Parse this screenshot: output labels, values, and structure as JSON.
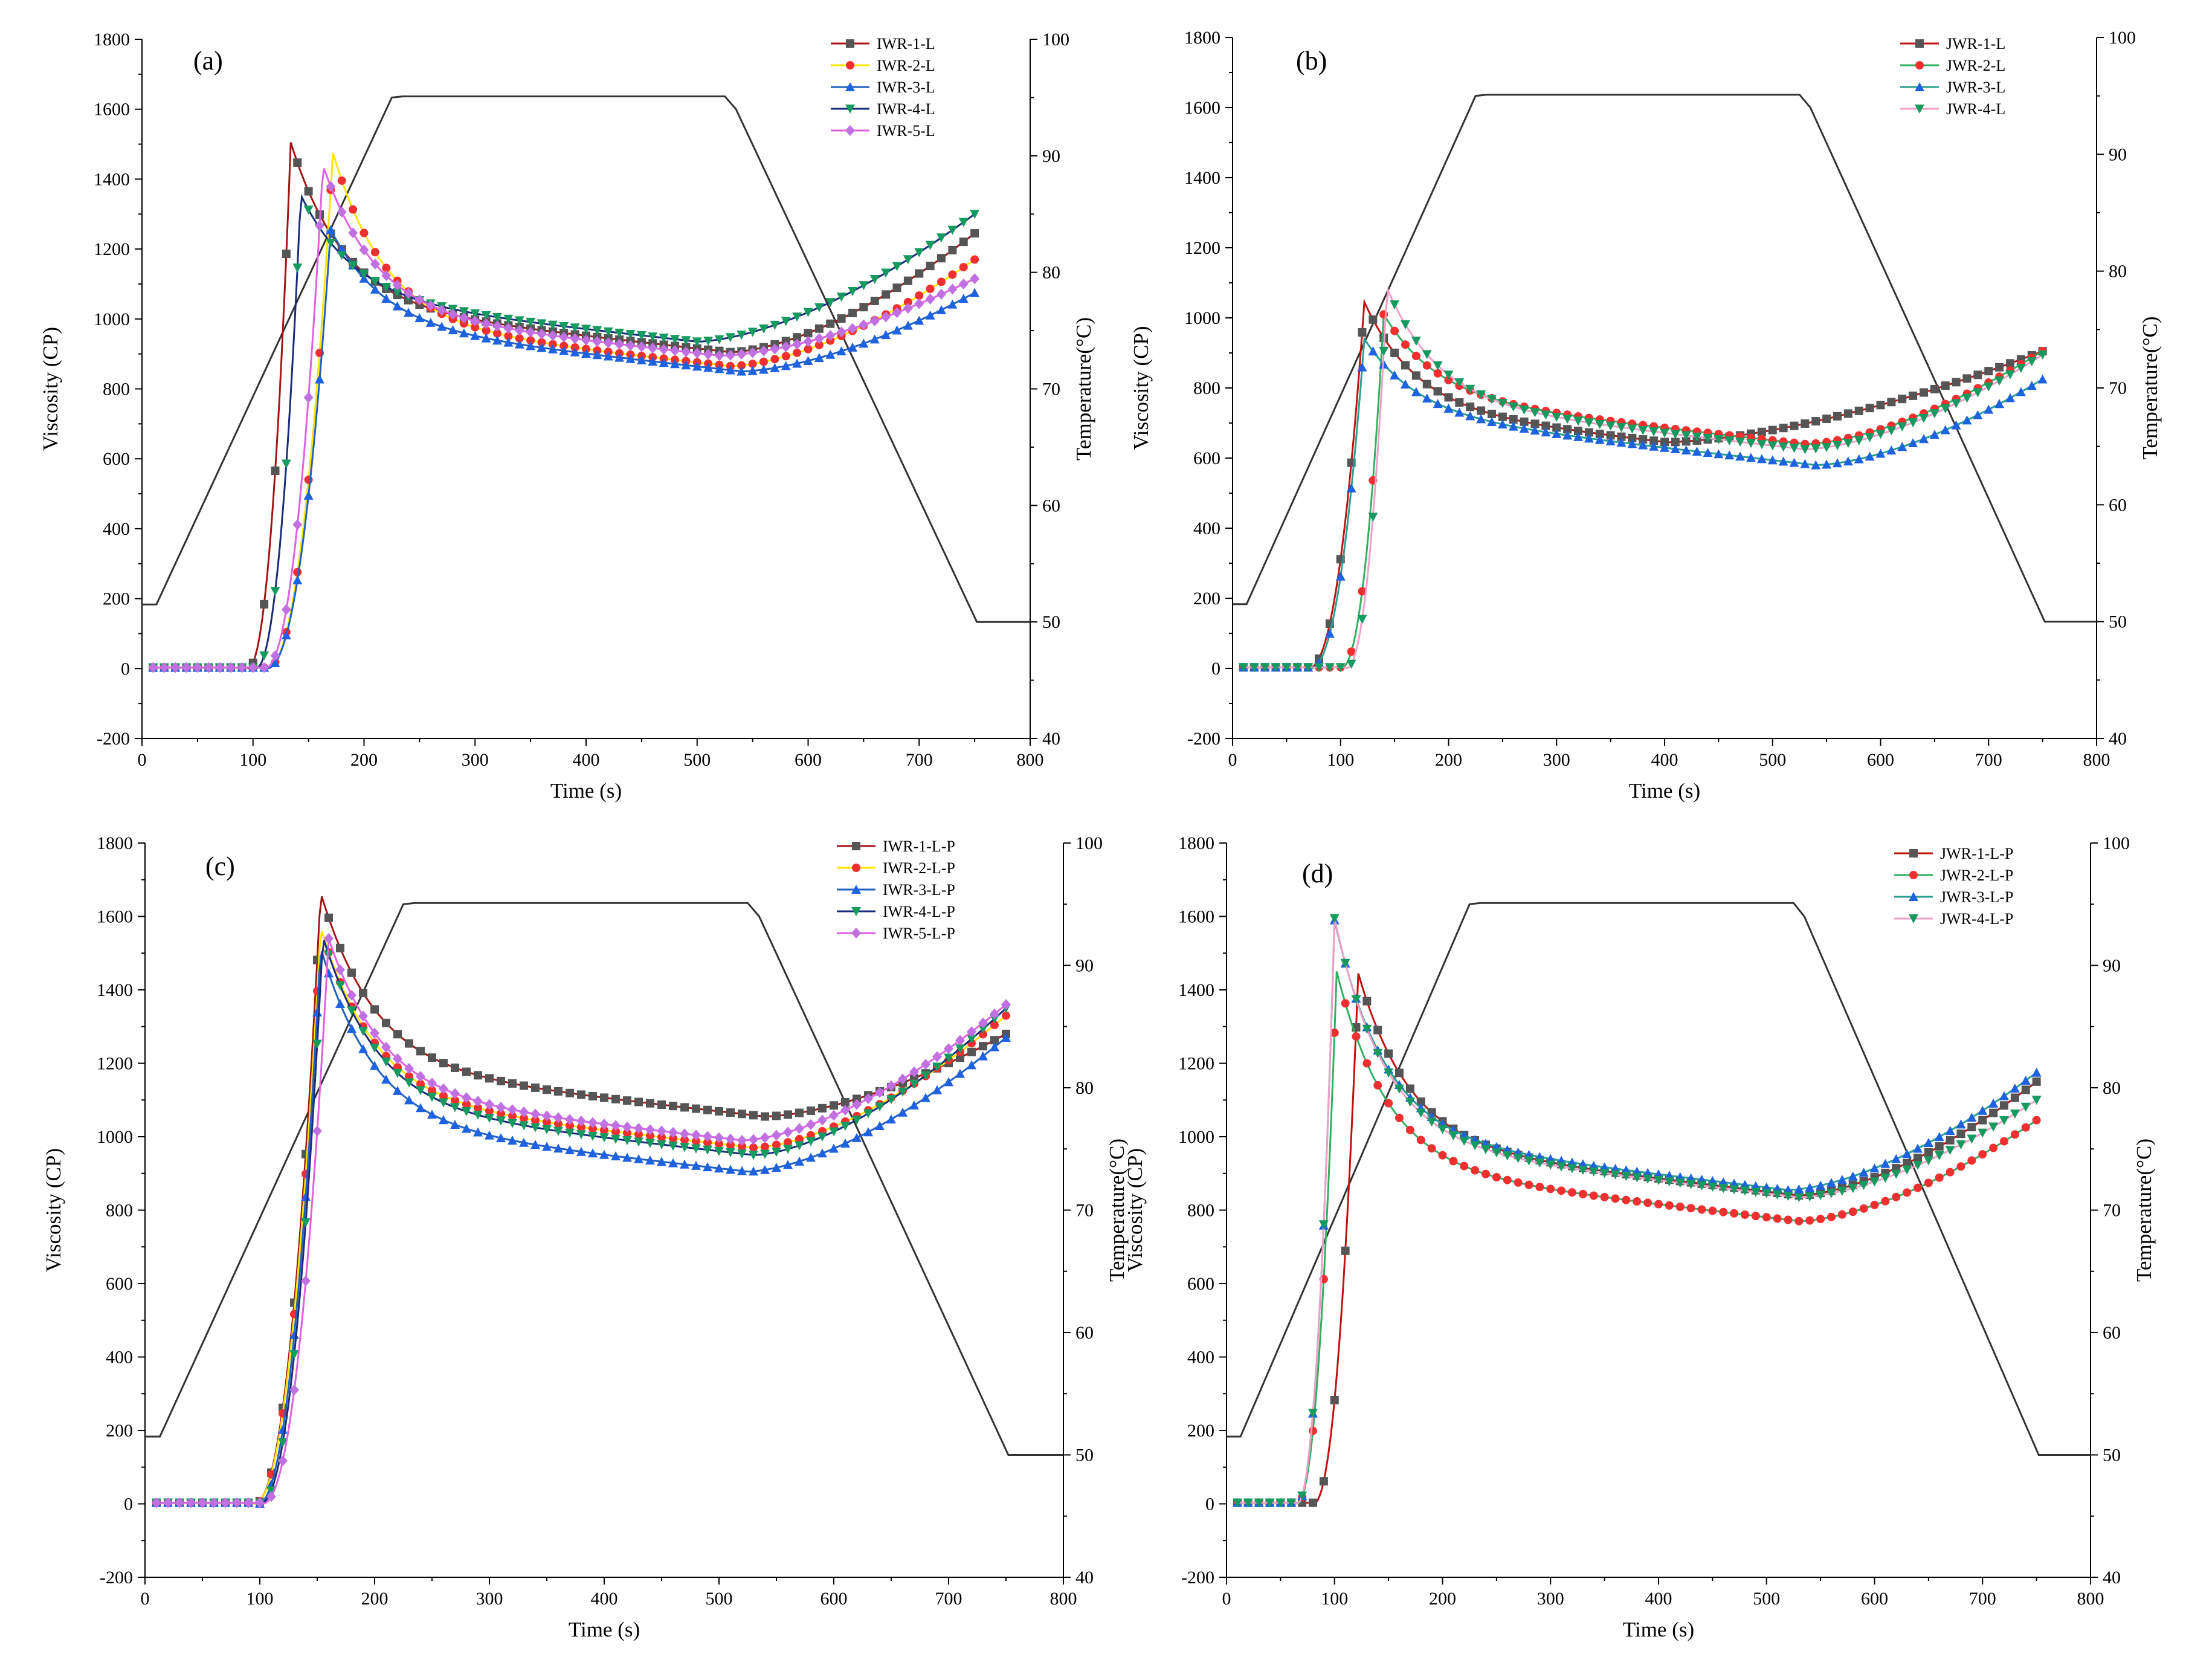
{
  "figure": {
    "description_free": true
  },
  "chart_data": [
    {
      "type": "line",
      "panel": "(a)",
      "xlabel": "Time (s)",
      "ylabel": "Viscosity (CP)",
      "y2label": "Temperature(°C)",
      "xlim": [
        0,
        800
      ],
      "ylim": [
        -200,
        1800
      ],
      "y2lim": [
        40,
        100
      ],
      "xticks": [
        0,
        100,
        200,
        300,
        400,
        500,
        600,
        700,
        800
      ],
      "yticks": [
        -200,
        0,
        200,
        400,
        600,
        800,
        1000,
        1200,
        1400,
        1600,
        1800
      ],
      "y2ticks": [
        40,
        50,
        60,
        70,
        80,
        90,
        100
      ],
      "legend_position": "top-right",
      "temperature": {
        "x": [
          0,
          13,
          225,
          235,
          525,
          535,
          752,
          800
        ],
        "y": [
          51.5,
          51.5,
          95,
          95.1,
          95.1,
          94,
          50,
          50
        ]
      },
      "series": [
        {
          "name": "IWR-1-L",
          "color": "#a31515",
          "marker_color": "#555555",
          "marker": "square",
          "peak_x": 134,
          "peak_y": 1505,
          "onset": 95,
          "base": 0,
          "min_x": 530,
          "min_y": 905,
          "end_y": 1245
        },
        {
          "name": "IWR-2-L",
          "color": "#ffe600",
          "marker_color": "#f03030",
          "marker": "circle",
          "peak_x": 172,
          "peak_y": 1475,
          "onset": 112,
          "base": 0,
          "min_x": 530,
          "min_y": 865,
          "end_y": 1170
        },
        {
          "name": "IWR-3-L",
          "color": "#2060c0",
          "marker_color": "#1e62e0",
          "marker": "triangle-up",
          "peak_x": 170,
          "peak_y": 1255,
          "onset": 112,
          "base": 0,
          "min_x": 540,
          "min_y": 850,
          "end_y": 1075
        },
        {
          "name": "IWR-4-L",
          "color": "#1a2c7a",
          "marker_color": "#159a60",
          "marker": "triangle-down",
          "peak_x": 143,
          "peak_y": 1355,
          "onset": 102,
          "base": 0,
          "min_x": 500,
          "min_y": 935,
          "end_y": 1300
        },
        {
          "name": "IWR-5-L",
          "color": "#e060e0",
          "marker_color": "#c070e0",
          "marker": "diamond",
          "peak_x": 163,
          "peak_y": 1440,
          "onset": 110,
          "base": 0,
          "min_x": 520,
          "min_y": 895,
          "end_y": 1115
        }
      ]
    },
    {
      "type": "line",
      "panel": "(b)",
      "xlabel": "Time (s)",
      "ylabel": "Viscosity (CP)",
      "y2label": "Temperature(°C)",
      "xlim": [
        0,
        800
      ],
      "ylim": [
        -200,
        1800
      ],
      "y2lim": [
        40,
        100
      ],
      "xticks": [
        0,
        100,
        200,
        300,
        400,
        500,
        600,
        700,
        800
      ],
      "yticks": [
        -200,
        0,
        200,
        400,
        600,
        800,
        1000,
        1200,
        1400,
        1600,
        1800
      ],
      "y2ticks": [
        40,
        50,
        60,
        70,
        80,
        90,
        100
      ],
      "legend_position": "top-right",
      "temperature": {
        "x": [
          0,
          13,
          225,
          235,
          525,
          535,
          752,
          800
        ],
        "y": [
          51.5,
          51.5,
          95,
          95.1,
          95.1,
          94,
          50,
          50
        ]
      },
      "series": [
        {
          "name": "JWR-1-L",
          "color": "#c01010",
          "marker_color": "#555555",
          "marker": "square",
          "peak_x": 122,
          "peak_y": 1045,
          "onset": 70,
          "base": 0,
          "min_x": 400,
          "min_y": 645,
          "end_y": 905
        },
        {
          "name": "JWR-2-L",
          "color": "#30b060",
          "marker_color": "#f03030",
          "marker": "circle",
          "peak_x": 140,
          "peak_y": 1010,
          "onset": 100,
          "base": 0,
          "min_x": 530,
          "min_y": 640,
          "end_y": 905
        },
        {
          "name": "JWR-3-L",
          "color": "#2aa090",
          "marker_color": "#1e62e0",
          "marker": "triangle-up",
          "peak_x": 122,
          "peak_y": 940,
          "onset": 72,
          "base": 0,
          "min_x": 540,
          "min_y": 580,
          "end_y": 825
        },
        {
          "name": "JWR-4-L",
          "color": "#f0a0c8",
          "marker_color": "#159a60",
          "marker": "triangle-down",
          "peak_x": 143,
          "peak_y": 1085,
          "onset": 105,
          "base": 0,
          "min_x": 530,
          "min_y": 625,
          "end_y": 895
        }
      ]
    },
    {
      "type": "line",
      "panel": "(c)",
      "xlabel": "Time (s)",
      "ylabel": "Viscosity (CP)",
      "y2label": "Temperature(°C)",
      "xlim": [
        0,
        800
      ],
      "ylim": [
        -200,
        1800
      ],
      "y2lim": [
        40,
        100
      ],
      "xticks": [
        0,
        100,
        200,
        300,
        400,
        500,
        600,
        700,
        800
      ],
      "yticks": [
        -200,
        0,
        200,
        400,
        600,
        800,
        1000,
        1200,
        1400,
        1600,
        1800
      ],
      "y2ticks": [
        40,
        50,
        60,
        70,
        80,
        90,
        100
      ],
      "legend_position": "top-right",
      "temperature": {
        "x": [
          0,
          13,
          225,
          235,
          525,
          535,
          752,
          800
        ],
        "y": [
          51.5,
          51.5,
          95,
          95.1,
          95.1,
          94,
          50,
          50
        ]
      },
      "series": [
        {
          "name": "IWR-1-L-P",
          "color": "#a31515",
          "marker_color": "#555555",
          "marker": "square",
          "peak_x": 153,
          "peak_y": 1665,
          "onset": 95,
          "base": 0,
          "min_x": 540,
          "min_y": 1055,
          "end_y": 1280
        },
        {
          "name": "IWR-2-L-P",
          "color": "#ffe600",
          "marker_color": "#f03030",
          "marker": "circle",
          "peak_x": 153,
          "peak_y": 1570,
          "onset": 95,
          "base": 0,
          "min_x": 530,
          "min_y": 970,
          "end_y": 1330
        },
        {
          "name": "IWR-3-L-P",
          "color": "#2060c0",
          "marker_color": "#1e62e0",
          "marker": "triangle-up",
          "peak_x": 153,
          "peak_y": 1515,
          "onset": 98,
          "base": 0,
          "min_x": 525,
          "min_y": 905,
          "end_y": 1270
        },
        {
          "name": "IWR-4-L-P",
          "color": "#1a2c7a",
          "marker_color": "#159a60",
          "marker": "triangle-down",
          "peak_x": 155,
          "peak_y": 1545,
          "onset": 100,
          "base": 0,
          "min_x": 530,
          "min_y": 950,
          "end_y": 1350
        },
        {
          "name": "IWR-5-L-P",
          "color": "#e060e0",
          "marker_color": "#c070e0",
          "marker": "diamond",
          "peak_x": 160,
          "peak_y": 1540,
          "onset": 102,
          "base": 0,
          "min_x": 520,
          "min_y": 990,
          "end_y": 1360
        }
      ]
    },
    {
      "type": "line",
      "panel": "(d)",
      "xlabel": "Time (s)",
      "ylabel": "Viscosity (CP)",
      "y2label": "Temperature(°C)",
      "xlim": [
        0,
        800
      ],
      "ylim": [
        -200,
        1800
      ],
      "y2lim": [
        40,
        100
      ],
      "xticks": [
        0,
        100,
        200,
        300,
        400,
        500,
        600,
        700,
        800
      ],
      "yticks": [
        -200,
        0,
        200,
        400,
        600,
        800,
        1000,
        1200,
        1400,
        1600,
        1800
      ],
      "y2ticks": [
        40,
        50,
        60,
        70,
        80,
        90,
        100
      ],
      "legend_position": "top-right",
      "temperature": {
        "x": [
          0,
          13,
          225,
          235,
          525,
          535,
          752,
          800
        ],
        "y": [
          51.5,
          51.5,
          95,
          95.1,
          95.1,
          94,
          50,
          50
        ]
      },
      "series": [
        {
          "name": "JWR-1-L-P",
          "color": "#c01010",
          "marker_color": "#555555",
          "marker": "square",
          "peak_x": 122,
          "peak_y": 1445,
          "onset": 80,
          "base": 0,
          "min_x": 530,
          "min_y": 840,
          "end_y": 1150
        },
        {
          "name": "JWR-2-L-P",
          "color": "#30b060",
          "marker_color": "#f03030",
          "marker": "circle",
          "peak_x": 102,
          "peak_y": 1450,
          "onset": 65,
          "base": 0,
          "min_x": 530,
          "min_y": 770,
          "end_y": 1045
        },
        {
          "name": "JWR-3-L-P",
          "color": "#2aa090",
          "marker_color": "#1e62e0",
          "marker": "triangle-up",
          "peak_x": 100,
          "peak_y": 1590,
          "onset": 65,
          "base": 0,
          "min_x": 520,
          "min_y": 855,
          "end_y": 1175
        },
        {
          "name": "JWR-4-L-P",
          "color": "#f0a0c8",
          "marker_color": "#159a60",
          "marker": "triangle-down",
          "peak_x": 100,
          "peak_y": 1595,
          "onset": 65,
          "base": 0,
          "min_x": 530,
          "min_y": 835,
          "end_y": 1100
        }
      ]
    }
  ]
}
